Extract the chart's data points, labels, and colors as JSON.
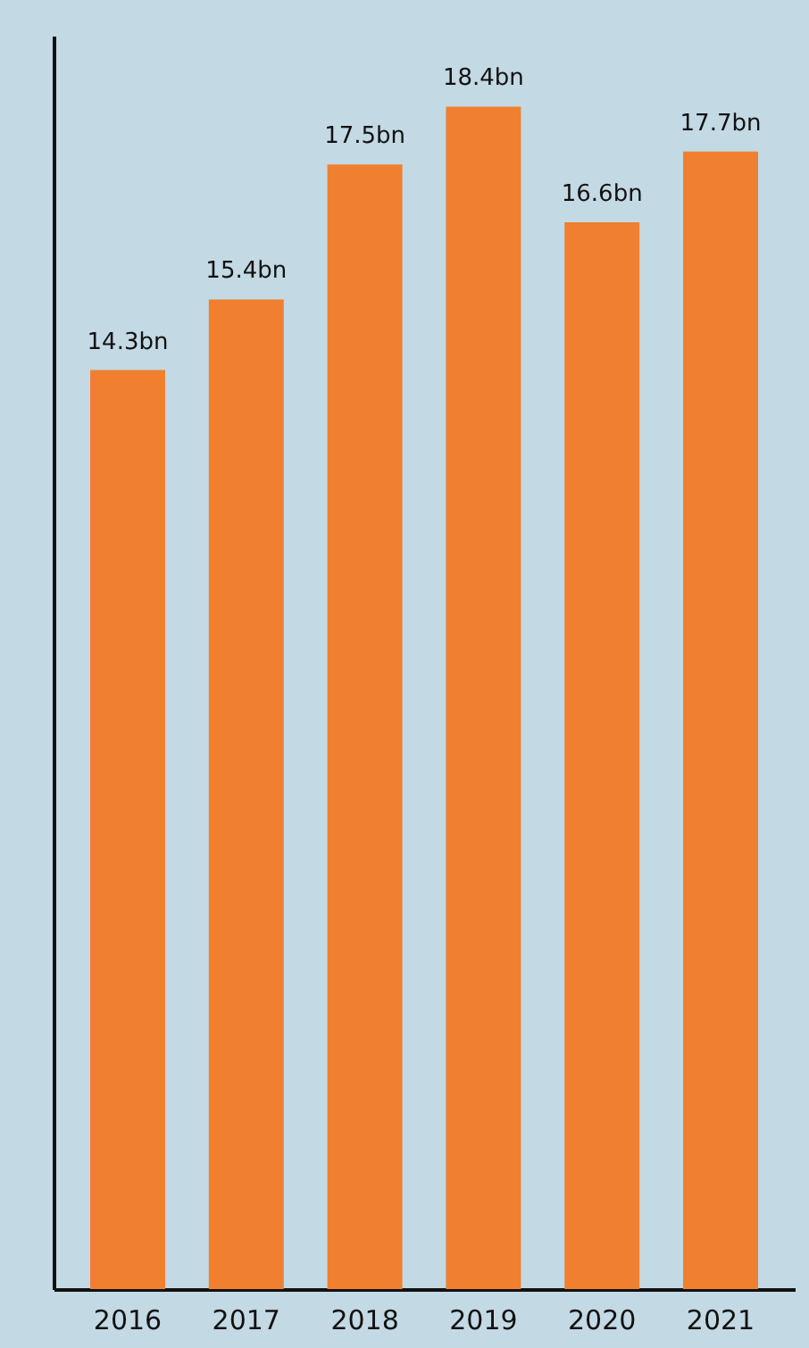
{
  "chart_data": {
    "type": "bar",
    "categories": [
      "2016",
      "2017",
      "2018",
      "2019",
      "2020",
      "2021"
    ],
    "values": [
      14.3,
      15.4,
      17.5,
      18.4,
      16.6,
      17.7
    ],
    "value_labels": [
      "14.3bn",
      "15.4bn",
      "17.5bn",
      "18.4bn",
      "16.6bn",
      "17.7bn"
    ],
    "color": "#f0802f",
    "grid": false
  }
}
